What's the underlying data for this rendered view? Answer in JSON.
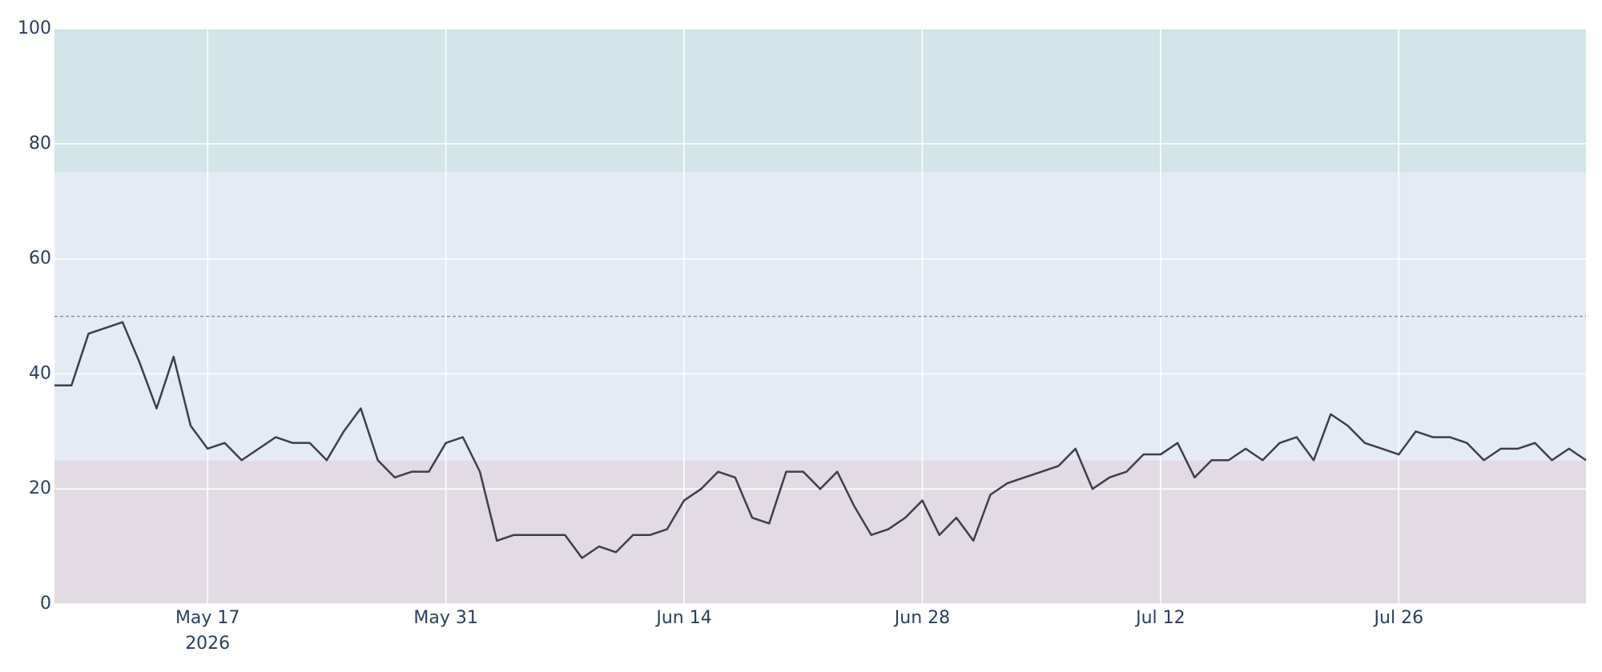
{
  "chart_data": {
    "type": "line",
    "x": [
      "2026-05-08",
      "2026-05-09",
      "2026-05-10",
      "2026-05-11",
      "2026-05-12",
      "2026-05-13",
      "2026-05-14",
      "2026-05-15",
      "2026-05-16",
      "2026-05-17",
      "2026-05-18",
      "2026-05-19",
      "2026-05-20",
      "2026-05-21",
      "2026-05-22",
      "2026-05-23",
      "2026-05-24",
      "2026-05-25",
      "2026-05-26",
      "2026-05-27",
      "2026-05-28",
      "2026-05-29",
      "2026-05-30",
      "2026-05-31",
      "2026-06-01",
      "2026-06-02",
      "2026-06-03",
      "2026-06-04",
      "2026-06-05",
      "2026-06-06",
      "2026-06-07",
      "2026-06-08",
      "2026-06-09",
      "2026-06-10",
      "2026-06-11",
      "2026-06-12",
      "2026-06-13",
      "2026-06-14",
      "2026-06-15",
      "2026-06-16",
      "2026-06-17",
      "2026-06-18",
      "2026-06-19",
      "2026-06-20",
      "2026-06-21",
      "2026-06-22",
      "2026-06-23",
      "2026-06-24",
      "2026-06-25",
      "2026-06-26",
      "2026-06-27",
      "2026-06-28",
      "2026-06-29",
      "2026-06-30",
      "2026-07-01",
      "2026-07-02",
      "2026-07-03",
      "2026-07-04",
      "2026-07-05",
      "2026-07-06",
      "2026-07-07",
      "2026-07-08",
      "2026-07-09",
      "2026-07-10",
      "2026-07-11",
      "2026-07-12",
      "2026-07-13",
      "2026-07-14",
      "2026-07-15",
      "2026-07-16",
      "2026-07-17",
      "2026-07-18",
      "2026-07-19",
      "2026-07-20",
      "2026-07-21",
      "2026-07-22",
      "2026-07-23",
      "2026-07-24",
      "2026-07-25",
      "2026-07-26",
      "2026-07-27",
      "2026-07-28",
      "2026-07-29",
      "2026-07-30",
      "2026-07-31",
      "2026-08-01",
      "2026-08-02",
      "2026-08-03",
      "2026-08-04",
      "2026-08-05",
      "2026-08-06"
    ],
    "values": [
      38,
      38,
      47,
      48,
      49,
      42,
      34,
      43,
      31,
      27,
      28,
      25,
      27,
      29,
      28,
      28,
      25,
      30,
      34,
      25,
      22,
      23,
      23,
      28,
      29,
      23,
      11,
      12,
      12,
      12,
      12,
      8,
      10,
      9,
      12,
      12,
      13,
      18,
      20,
      23,
      22,
      15,
      14,
      23,
      23,
      20,
      23,
      17,
      12,
      13,
      15,
      18,
      12,
      15,
      11,
      19,
      21,
      22,
      23,
      24,
      27,
      20,
      22,
      23,
      26,
      26,
      28,
      22,
      25,
      25,
      27,
      25,
      28,
      29,
      25,
      33,
      31,
      28,
      27,
      26,
      30,
      29,
      29,
      28,
      25,
      27,
      27,
      28,
      25,
      27,
      25
    ],
    "color": "#3d3f4d",
    "xlim": [
      "2026-05-08",
      "2026-08-06"
    ],
    "xticks": [
      {
        "value": "2026-05-17",
        "label": "May 17"
      },
      {
        "value": "2026-05-31",
        "label": "May 31"
      },
      {
        "value": "2026-06-14",
        "label": "Jun 14"
      },
      {
        "value": "2026-06-28",
        "label": "Jun 28"
      },
      {
        "value": "2026-07-12",
        "label": "Jul 12"
      },
      {
        "value": "2026-07-26",
        "label": "Jul 26"
      }
    ],
    "x_year_label": "2026",
    "ylim": [
      0,
      100
    ],
    "yticks": [
      0,
      20,
      40,
      60,
      80,
      100
    ],
    "grid": true,
    "bands": [
      {
        "from": 0,
        "to": 25,
        "color": "#e2dbe4"
      },
      {
        "from": 25,
        "to": 75,
        "color": "#e5ebf5"
      },
      {
        "from": 75,
        "to": 100,
        "color": "#d2e5e8"
      }
    ],
    "reference_line": 50
  }
}
